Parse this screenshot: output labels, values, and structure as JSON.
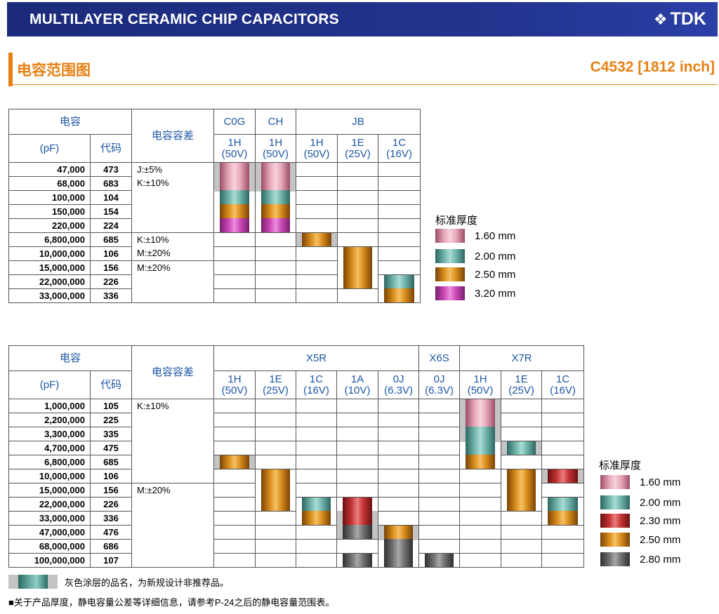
{
  "header": {
    "title": "MULTILAYER CERAMIC CHIP CAPACITORS",
    "logo_text": "TDK"
  },
  "section": {
    "title": "电容范围图",
    "size_label": "C4532 [1812 inch]"
  },
  "colors": {
    "accent": "#e87f12",
    "header_bg": "#1b2a7a",
    "header_text": "#1d56a5"
  },
  "table1": {
    "cap_header": "电容",
    "unit": "(pF)",
    "code_header": "代码",
    "tol_header": "电容容差",
    "groups": [
      "C0G",
      "CH",
      "JB"
    ],
    "columns": [
      {
        "v": "1H",
        "volt": "(50V)"
      },
      {
        "v": "1H",
        "volt": "(50V)"
      },
      {
        "v": "1H",
        "volt": "(50V)"
      },
      {
        "v": "1E",
        "volt": "(25V)"
      },
      {
        "v": "1C",
        "volt": "(16V)"
      }
    ],
    "rows": [
      {
        "cap": "47,000",
        "code": "473"
      },
      {
        "cap": "68,000",
        "code": "683"
      },
      {
        "cap": "100,000",
        "code": "104"
      },
      {
        "cap": "150,000",
        "code": "154"
      },
      {
        "cap": "220,000",
        "code": "224"
      },
      {
        "cap": "6,800,000",
        "code": "685"
      },
      {
        "cap": "10,000,000",
        "code": "106"
      },
      {
        "cap": "15,000,000",
        "code": "156"
      },
      {
        "cap": "22,000,000",
        "code": "226"
      },
      {
        "cap": "33,000,000",
        "code": "336"
      }
    ],
    "tolerances": [
      {
        "lines": [
          "J:±5%",
          "K:±10%"
        ]
      },
      {
        "lines": [
          "K:±10%",
          "M:±20%"
        ]
      },
      {
        "lines": [
          "M:±20%"
        ]
      }
    ],
    "legend": {
      "title": "标准厚度",
      "items": [
        {
          "label": "1.60 mm",
          "color": "pink"
        },
        {
          "label": "2.00 mm",
          "color": "teal"
        },
        {
          "label": "2.50 mm",
          "color": "orange"
        },
        {
          "label": "3.20 mm",
          "color": "magenta"
        }
      ]
    }
  },
  "table2": {
    "cap_header": "电容",
    "unit": "(pF)",
    "code_header": "代码",
    "tol_header": "电容容差",
    "groups": [
      "X5R",
      "X6S",
      "X7R"
    ],
    "columns": [
      {
        "v": "1H",
        "volt": "(50V)"
      },
      {
        "v": "1E",
        "volt": "(25V)"
      },
      {
        "v": "1C",
        "volt": "(16V)"
      },
      {
        "v": "1A",
        "volt": "(10V)"
      },
      {
        "v": "0J",
        "volt": "(6.3V)"
      },
      {
        "v": "0J",
        "volt": "(6.3V)"
      },
      {
        "v": "1H",
        "volt": "(50V)"
      },
      {
        "v": "1E",
        "volt": "(25V)"
      },
      {
        "v": "1C",
        "volt": "(16V)"
      }
    ],
    "rows": [
      {
        "cap": "1,000,000",
        "code": "105"
      },
      {
        "cap": "2,200,000",
        "code": "225"
      },
      {
        "cap": "3,300,000",
        "code": "335"
      },
      {
        "cap": "4,700,000",
        "code": "475"
      },
      {
        "cap": "6,800,000",
        "code": "685"
      },
      {
        "cap": "10,000,000",
        "code": "106"
      },
      {
        "cap": "15,000,000",
        "code": "156"
      },
      {
        "cap": "22,000,000",
        "code": "226"
      },
      {
        "cap": "33,000,000",
        "code": "336"
      },
      {
        "cap": "47,000,000",
        "code": "476"
      },
      {
        "cap": "68,000,000",
        "code": "686"
      },
      {
        "cap": "100,000,000",
        "code": "107"
      }
    ],
    "tolerances": [
      {
        "lines": [
          "K:±10%"
        ]
      },
      {
        "lines": [
          "M:±20%"
        ]
      }
    ],
    "legend": {
      "title": "标准厚度",
      "items": [
        {
          "label": "1.60 mm",
          "color": "pink"
        },
        {
          "label": "2.00 mm",
          "color": "teal"
        },
        {
          "label": "2.30 mm",
          "color": "red"
        },
        {
          "label": "2.50 mm",
          "color": "orange"
        },
        {
          "label": "2.80 mm",
          "color": "dgray"
        }
      ]
    }
  },
  "notes": {
    "gray_note": "灰色涂层的品名，为新规设计非推荐品。",
    "ref_note": "■关于产品厚度，静电容量公差等详细信息，请参考P-24之后的静电容量范围表。"
  }
}
